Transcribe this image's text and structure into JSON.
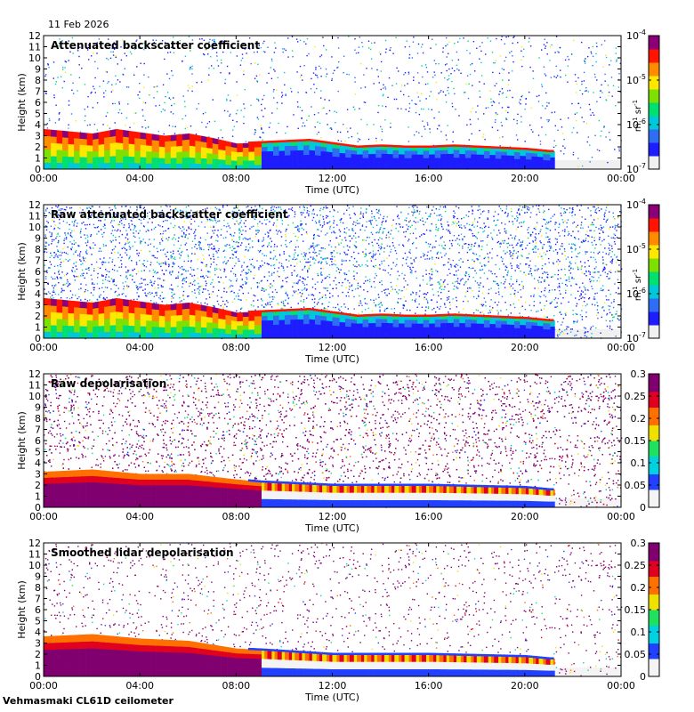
{
  "date": "11 Feb 2026",
  "footer": "Vehmasmaki CL61D ceilometer",
  "colors": {
    "jet": [
      "#f0f0f0",
      "#1d1dff",
      "#2f6df5",
      "#00c8d8",
      "#00e070",
      "#7de000",
      "#ffe800",
      "#ff8c00",
      "#ff1400",
      "#8b0076"
    ],
    "depol": [
      "#f4f4f4",
      "#2240ff",
      "#00d0e0",
      "#20e060",
      "#f0e000",
      "#ff7000",
      "#e00020",
      "#800070"
    ]
  },
  "chart_data": [
    {
      "type": "heatmap",
      "title": "Attenuated backscatter coefficient",
      "xlabel": "Time (UTC)",
      "ylabel": "Height (km)",
      "xticks": [
        "00:00",
        "04:00",
        "08:00",
        "12:00",
        "16:00",
        "20:00",
        "00:00"
      ],
      "yticks": [
        "0",
        "1",
        "2",
        "3",
        "4",
        "5",
        "6",
        "7",
        "8",
        "9",
        "10",
        "11",
        "12"
      ],
      "xlim_hours": [
        0,
        24
      ],
      "ylim_km": [
        0,
        12
      ],
      "colorbar": {
        "scale": "log",
        "ticks": [
          "10",
          "10",
          "10",
          "10"
        ],
        "exponents": [
          "-7",
          "-6",
          "-5",
          "-4"
        ],
        "label": "m",
        "label_exp": "-1",
        "label2": " sr",
        "label2_exp": "-1"
      },
      "cloud_base_km": [
        [
          0,
          3.6
        ],
        [
          1,
          3.4
        ],
        [
          2,
          3.2
        ],
        [
          3,
          3.6
        ],
        [
          4,
          3.3
        ],
        [
          5,
          3.0
        ],
        [
          6,
          3.2
        ],
        [
          7,
          2.8
        ],
        [
          8,
          2.3
        ],
        [
          9,
          2.4
        ],
        [
          10,
          2.5
        ],
        [
          11,
          2.6
        ],
        [
          12,
          2.3
        ],
        [
          13,
          2.0
        ],
        [
          14,
          2.1
        ],
        [
          15,
          2.0
        ],
        [
          16,
          2.0
        ],
        [
          17,
          2.1
        ],
        [
          18,
          2.0
        ],
        [
          19,
          1.9
        ],
        [
          20,
          1.8
        ],
        [
          21,
          1.6
        ]
      ],
      "noise_level": 0.25,
      "scheme": "jet"
    },
    {
      "type": "heatmap",
      "title": "Raw attenuated backscatter coefficient",
      "xlabel": "Time (UTC)",
      "ylabel": "Height (km)",
      "xticks": [
        "00:00",
        "04:00",
        "08:00",
        "12:00",
        "16:00",
        "20:00",
        "00:00"
      ],
      "yticks": [
        "0",
        "1",
        "2",
        "3",
        "4",
        "5",
        "6",
        "7",
        "8",
        "9",
        "10",
        "11",
        "12"
      ],
      "xlim_hours": [
        0,
        24
      ],
      "ylim_km": [
        0,
        12
      ],
      "colorbar": {
        "scale": "log",
        "ticks": [
          "10",
          "10",
          "10",
          "10"
        ],
        "exponents": [
          "-7",
          "-6",
          "-5",
          "-4"
        ],
        "label": "m",
        "label_exp": "-1",
        "label2": " sr",
        "label2_exp": "-1"
      },
      "cloud_base_km": [
        [
          0,
          3.6
        ],
        [
          1,
          3.4
        ],
        [
          2,
          3.2
        ],
        [
          3,
          3.6
        ],
        [
          4,
          3.3
        ],
        [
          5,
          3.0
        ],
        [
          6,
          3.2
        ],
        [
          7,
          2.8
        ],
        [
          8,
          2.3
        ],
        [
          9,
          2.4
        ],
        [
          10,
          2.5
        ],
        [
          11,
          2.6
        ],
        [
          12,
          2.3
        ],
        [
          13,
          2.0
        ],
        [
          14,
          2.1
        ],
        [
          15,
          2.0
        ],
        [
          16,
          2.0
        ],
        [
          17,
          2.1
        ],
        [
          18,
          2.0
        ],
        [
          19,
          1.9
        ],
        [
          20,
          1.8
        ],
        [
          21,
          1.6
        ]
      ],
      "noise_level": 0.85,
      "scheme": "jet"
    },
    {
      "type": "heatmap",
      "title": "Raw depolarisation",
      "xlabel": "Time (UTC)",
      "ylabel": "Height (km)",
      "xticks": [
        "00:00",
        "04:00",
        "08:00",
        "12:00",
        "16:00",
        "20:00",
        "00:00"
      ],
      "yticks": [
        "0",
        "1",
        "2",
        "3",
        "4",
        "5",
        "6",
        "7",
        "8",
        "9",
        "10",
        "11",
        "12"
      ],
      "xlim_hours": [
        0,
        24
      ],
      "ylim_km": [
        0,
        12
      ],
      "colorbar": {
        "scale": "linear",
        "ticks": [
          "0",
          "0.05",
          "0.1",
          "0.15",
          "0.2",
          "0.25",
          "0.3"
        ]
      },
      "cloud_base_km": [
        [
          0,
          3.2
        ],
        [
          2,
          3.4
        ],
        [
          4,
          3.0
        ],
        [
          6,
          3.0
        ],
        [
          8,
          2.5
        ],
        [
          9,
          2.3
        ],
        [
          12,
          2.0
        ],
        [
          16,
          2.0
        ],
        [
          20,
          1.8
        ],
        [
          21,
          1.6
        ]
      ],
      "noise_level": 0.95,
      "scheme": "depol"
    },
    {
      "type": "heatmap",
      "title": "Smoothed lidar depolarisation",
      "xlabel": "Time (UTC)",
      "ylabel": "Height (km)",
      "xticks": [
        "00:00",
        "04:00",
        "08:00",
        "12:00",
        "16:00",
        "20:00",
        "00:00"
      ],
      "yticks": [
        "0",
        "1",
        "2",
        "3",
        "4",
        "5",
        "6",
        "7",
        "8",
        "9",
        "10",
        "11",
        "12"
      ],
      "xlim_hours": [
        0,
        24
      ],
      "ylim_km": [
        0,
        12
      ],
      "colorbar": {
        "scale": "linear",
        "ticks": [
          "0",
          "0.05",
          "0.1",
          "0.15",
          "0.2",
          "0.25",
          "0.3"
        ]
      },
      "cloud_base_km": [
        [
          0,
          3.6
        ],
        [
          2,
          3.8
        ],
        [
          4,
          3.4
        ],
        [
          6,
          3.2
        ],
        [
          8,
          2.5
        ],
        [
          9,
          2.4
        ],
        [
          12,
          2.0
        ],
        [
          16,
          2.0
        ],
        [
          20,
          1.8
        ],
        [
          21,
          1.6
        ]
      ],
      "noise_level": 0.3,
      "scheme": "depol"
    }
  ]
}
